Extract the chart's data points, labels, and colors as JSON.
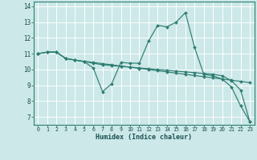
{
  "xlabel": "Humidex (Indice chaleur)",
  "bg_color": "#cce8e8",
  "grid_color": "#ffffff",
  "line_color": "#2e7d72",
  "xlim": [
    -0.5,
    23.5
  ],
  "ylim": [
    6.5,
    14.3
  ],
  "xticks": [
    0,
    1,
    2,
    3,
    4,
    5,
    6,
    7,
    8,
    9,
    10,
    11,
    12,
    13,
    14,
    15,
    16,
    17,
    18,
    19,
    20,
    21,
    22,
    23
  ],
  "yticks": [
    7,
    8,
    9,
    10,
    11,
    12,
    13,
    14
  ],
  "series": {
    "line1": [
      11.0,
      11.1,
      11.1,
      10.7,
      10.6,
      10.5,
      10.1,
      8.6,
      9.1,
      10.45,
      10.4,
      10.4,
      11.8,
      12.8,
      12.7,
      13.0,
      13.6,
      11.4,
      9.7,
      9.6,
      9.4,
      8.9,
      7.7,
      6.7
    ],
    "line2": [
      11.0,
      11.1,
      11.1,
      10.7,
      10.6,
      10.52,
      10.45,
      10.37,
      10.3,
      10.22,
      10.15,
      10.07,
      10.0,
      9.92,
      9.85,
      9.77,
      9.7,
      9.62,
      9.55,
      9.47,
      9.4,
      9.32,
      9.25,
      9.17
    ],
    "line3": [
      11.0,
      11.1,
      11.1,
      10.7,
      10.6,
      10.5,
      10.4,
      10.3,
      10.25,
      10.2,
      10.15,
      10.1,
      10.05,
      10.0,
      9.95,
      9.9,
      9.85,
      9.8,
      9.75,
      9.7,
      9.6,
      9.3,
      8.7,
      6.7
    ]
  }
}
